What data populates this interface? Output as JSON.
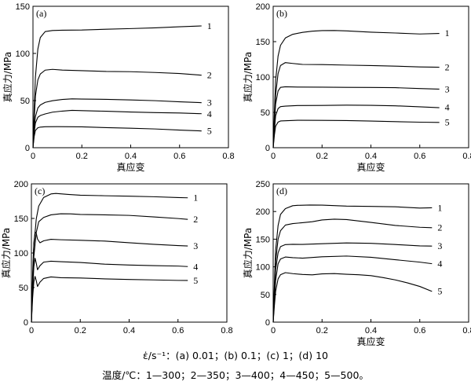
{
  "chart_data": [
    {
      "type": "line",
      "panel": "(a)",
      "xlabel": "真应变",
      "ylabel": "真应力/MPa",
      "xlim": [
        0,
        0.8
      ],
      "ylim": [
        0,
        150
      ],
      "xticks": [
        0,
        0.2,
        0.4,
        0.6,
        0.8
      ],
      "yticks": [
        0,
        50,
        100,
        150
      ],
      "series": [
        {
          "name": "1",
          "x": [
            0,
            0.005,
            0.01,
            0.02,
            0.03,
            0.05,
            0.08,
            0.12,
            0.2,
            0.3,
            0.4,
            0.5,
            0.6,
            0.69
          ],
          "y": [
            0,
            40,
            75,
            105,
            117,
            123,
            124,
            124.5,
            125,
            126,
            126.5,
            127,
            128,
            129
          ]
        },
        {
          "name": "2",
          "x": [
            0,
            0.005,
            0.01,
            0.02,
            0.03,
            0.05,
            0.08,
            0.12,
            0.2,
            0.3,
            0.4,
            0.5,
            0.6,
            0.69
          ],
          "y": [
            0,
            30,
            55,
            72,
            78,
            82,
            83,
            82.5,
            82,
            81,
            80.5,
            79.5,
            78.5,
            77
          ]
        },
        {
          "name": "3",
          "x": [
            0,
            0.005,
            0.01,
            0.02,
            0.03,
            0.05,
            0.08,
            0.12,
            0.16,
            0.2,
            0.3,
            0.4,
            0.5,
            0.6,
            0.69
          ],
          "y": [
            0,
            20,
            33,
            42,
            45,
            48,
            50,
            51.5,
            52,
            51.5,
            51,
            50.5,
            50,
            49,
            48
          ]
        },
        {
          "name": "4",
          "x": [
            0,
            0.005,
            0.01,
            0.02,
            0.03,
            0.05,
            0.08,
            0.12,
            0.16,
            0.2,
            0.3,
            0.4,
            0.5,
            0.6,
            0.69
          ],
          "y": [
            0,
            16,
            26,
            32,
            34,
            36,
            38,
            39,
            39.5,
            39,
            38.5,
            38,
            37.5,
            37,
            36
          ]
        },
        {
          "name": "5",
          "x": [
            0,
            0.005,
            0.01,
            0.02,
            0.03,
            0.05,
            0.1,
            0.2,
            0.3,
            0.4,
            0.5,
            0.6,
            0.69
          ],
          "y": [
            0,
            12,
            18,
            21,
            22,
            22.5,
            22.5,
            22,
            21,
            20.5,
            20,
            19,
            18
          ]
        }
      ]
    },
    {
      "type": "line",
      "panel": "(b)",
      "xlabel": "真应变",
      "ylabel": "真应力/MPa",
      "xlim": [
        0,
        0.8
      ],
      "ylim": [
        0,
        200
      ],
      "xticks": [
        0,
        0.2,
        0.4,
        0.6,
        0.8
      ],
      "yticks": [
        0,
        50,
        100,
        150,
        200
      ],
      "series": [
        {
          "name": "1",
          "x": [
            0,
            0.005,
            0.01,
            0.02,
            0.03,
            0.05,
            0.08,
            0.12,
            0.16,
            0.2,
            0.25,
            0.3,
            0.4,
            0.5,
            0.6,
            0.68
          ],
          "y": [
            0,
            50,
            95,
            130,
            145,
            155,
            160,
            163,
            165,
            166,
            166,
            165,
            163,
            162,
            161,
            162
          ]
        },
        {
          "name": "2",
          "x": [
            0,
            0.005,
            0.01,
            0.02,
            0.03,
            0.05,
            0.08,
            0.12,
            0.2,
            0.3,
            0.4,
            0.5,
            0.6,
            0.68
          ],
          "y": [
            0,
            40,
            75,
            105,
            116,
            120,
            119,
            118,
            118,
            117,
            116,
            115,
            114,
            114
          ]
        },
        {
          "name": "3",
          "x": [
            0,
            0.005,
            0.01,
            0.02,
            0.03,
            0.05,
            0.1,
            0.2,
            0.3,
            0.4,
            0.5,
            0.6,
            0.68
          ],
          "y": [
            0,
            35,
            62,
            80,
            85,
            86,
            86,
            86,
            85.5,
            85,
            84.5,
            83.5,
            83
          ]
        },
        {
          "name": "4",
          "x": [
            0,
            0.005,
            0.01,
            0.02,
            0.03,
            0.05,
            0.1,
            0.2,
            0.3,
            0.4,
            0.5,
            0.6,
            0.68
          ],
          "y": [
            0,
            25,
            45,
            55,
            58,
            59,
            60,
            60,
            60,
            59.5,
            59,
            58,
            57
          ]
        },
        {
          "name": "5",
          "x": [
            0,
            0.005,
            0.01,
            0.02,
            0.03,
            0.05,
            0.1,
            0.2,
            0.3,
            0.4,
            0.5,
            0.6,
            0.68
          ],
          "y": [
            0,
            18,
            30,
            36,
            38,
            38.5,
            39,
            38.5,
            38,
            37.5,
            37,
            36.5,
            36
          ]
        }
      ]
    },
    {
      "type": "line",
      "panel": "(c)",
      "xlabel": "",
      "ylabel": "真应力/MPa",
      "xlim": [
        0,
        0.8
      ],
      "ylim": [
        0,
        200
      ],
      "xticks": [
        0,
        0.2,
        0.4,
        0.6,
        0.8
      ],
      "yticks": [
        0,
        50,
        100,
        150,
        200
      ],
      "series": [
        {
          "name": "1",
          "x": [
            0,
            0.005,
            0.01,
            0.02,
            0.03,
            0.05,
            0.08,
            0.1,
            0.15,
            0.2,
            0.3,
            0.4,
            0.5,
            0.6,
            0.64
          ],
          "y": [
            0,
            60,
            110,
            150,
            168,
            180,
            185,
            186,
            185,
            184,
            183,
            182,
            181,
            180,
            180
          ]
        },
        {
          "name": "2",
          "x": [
            0,
            0.005,
            0.01,
            0.02,
            0.03,
            0.05,
            0.08,
            0.12,
            0.16,
            0.2,
            0.3,
            0.4,
            0.5,
            0.6,
            0.64
          ],
          "y": [
            0,
            50,
            95,
            130,
            145,
            151,
            155,
            157,
            157,
            156,
            155,
            154,
            152,
            150,
            149
          ]
        },
        {
          "name": "3",
          "x": [
            0,
            0.005,
            0.01,
            0.015,
            0.02,
            0.025,
            0.035,
            0.05,
            0.08,
            0.12,
            0.2,
            0.3,
            0.4,
            0.5,
            0.6,
            0.64
          ],
          "y": [
            0,
            70,
            115,
            130,
            128,
            120,
            115,
            118,
            120,
            119,
            118,
            117,
            115,
            113,
            111,
            110
          ]
        },
        {
          "name": "4",
          "x": [
            0,
            0.005,
            0.01,
            0.015,
            0.02,
            0.025,
            0.035,
            0.05,
            0.08,
            0.12,
            0.2,
            0.3,
            0.4,
            0.5,
            0.6,
            0.64
          ],
          "y": [
            0,
            45,
            80,
            92,
            85,
            76,
            82,
            87,
            88,
            87,
            86,
            84,
            83,
            82,
            81,
            80
          ]
        },
        {
          "name": "5",
          "x": [
            0,
            0.005,
            0.01,
            0.015,
            0.02,
            0.025,
            0.035,
            0.05,
            0.08,
            0.12,
            0.2,
            0.3,
            0.4,
            0.5,
            0.6,
            0.64
          ],
          "y": [
            0,
            35,
            58,
            66,
            60,
            52,
            58,
            63,
            65,
            64,
            64,
            63,
            62,
            61,
            60,
            60
          ]
        }
      ]
    },
    {
      "type": "line",
      "panel": "(d)",
      "xlabel": "真应变",
      "ylabel": "真应力/MPa",
      "xlim": [
        0,
        0.8
      ],
      "ylim": [
        0,
        250
      ],
      "xticks": [
        0,
        0.2,
        0.4,
        0.6,
        0.8
      ],
      "yticks": [
        0,
        50,
        100,
        150,
        200,
        250
      ],
      "series": [
        {
          "name": "1",
          "x": [
            0,
            0.005,
            0.01,
            0.02,
            0.03,
            0.05,
            0.08,
            0.1,
            0.15,
            0.2,
            0.3,
            0.4,
            0.5,
            0.6,
            0.65
          ],
          "y": [
            0,
            70,
            130,
            175,
            195,
            205,
            210,
            211,
            212,
            212,
            210,
            209,
            208,
            206,
            207
          ]
        },
        {
          "name": "2",
          "x": [
            0,
            0.005,
            0.01,
            0.02,
            0.03,
            0.05,
            0.08,
            0.12,
            0.16,
            0.2,
            0.25,
            0.3,
            0.4,
            0.5,
            0.6,
            0.65
          ],
          "y": [
            0,
            60,
            110,
            150,
            165,
            175,
            178,
            180,
            182,
            185,
            186,
            185,
            180,
            175,
            172,
            171
          ]
        },
        {
          "name": "3",
          "x": [
            0,
            0.005,
            0.01,
            0.02,
            0.03,
            0.05,
            0.08,
            0.12,
            0.2,
            0.3,
            0.4,
            0.5,
            0.6,
            0.65
          ],
          "y": [
            0,
            50,
            95,
            125,
            136,
            140,
            141,
            141,
            142,
            143,
            142,
            140,
            138,
            138
          ]
        },
        {
          "name": "4",
          "x": [
            0,
            0.005,
            0.01,
            0.02,
            0.03,
            0.05,
            0.08,
            0.12,
            0.2,
            0.3,
            0.4,
            0.5,
            0.6,
            0.65
          ],
          "y": [
            0,
            40,
            75,
            105,
            114,
            118,
            117,
            116,
            118,
            119,
            117,
            113,
            109,
            106
          ]
        },
        {
          "name": "5",
          "x": [
            0,
            0.005,
            0.01,
            0.02,
            0.03,
            0.05,
            0.08,
            0.12,
            0.16,
            0.2,
            0.25,
            0.3,
            0.35,
            0.4,
            0.45,
            0.5,
            0.55,
            0.6,
            0.65
          ],
          "y": [
            0,
            30,
            55,
            78,
            86,
            90,
            88,
            86,
            85,
            87,
            88,
            87,
            86,
            84,
            80,
            76,
            71,
            65,
            56
          ]
        }
      ]
    }
  ],
  "caption": {
    "rate_line": "ε̇/s⁻¹：(a) 0.01；(b) 0.1；(c) 1；(d) 10",
    "temp_line": "温度/℃：1—300；2—350；3—400；4—450；5—500。"
  }
}
